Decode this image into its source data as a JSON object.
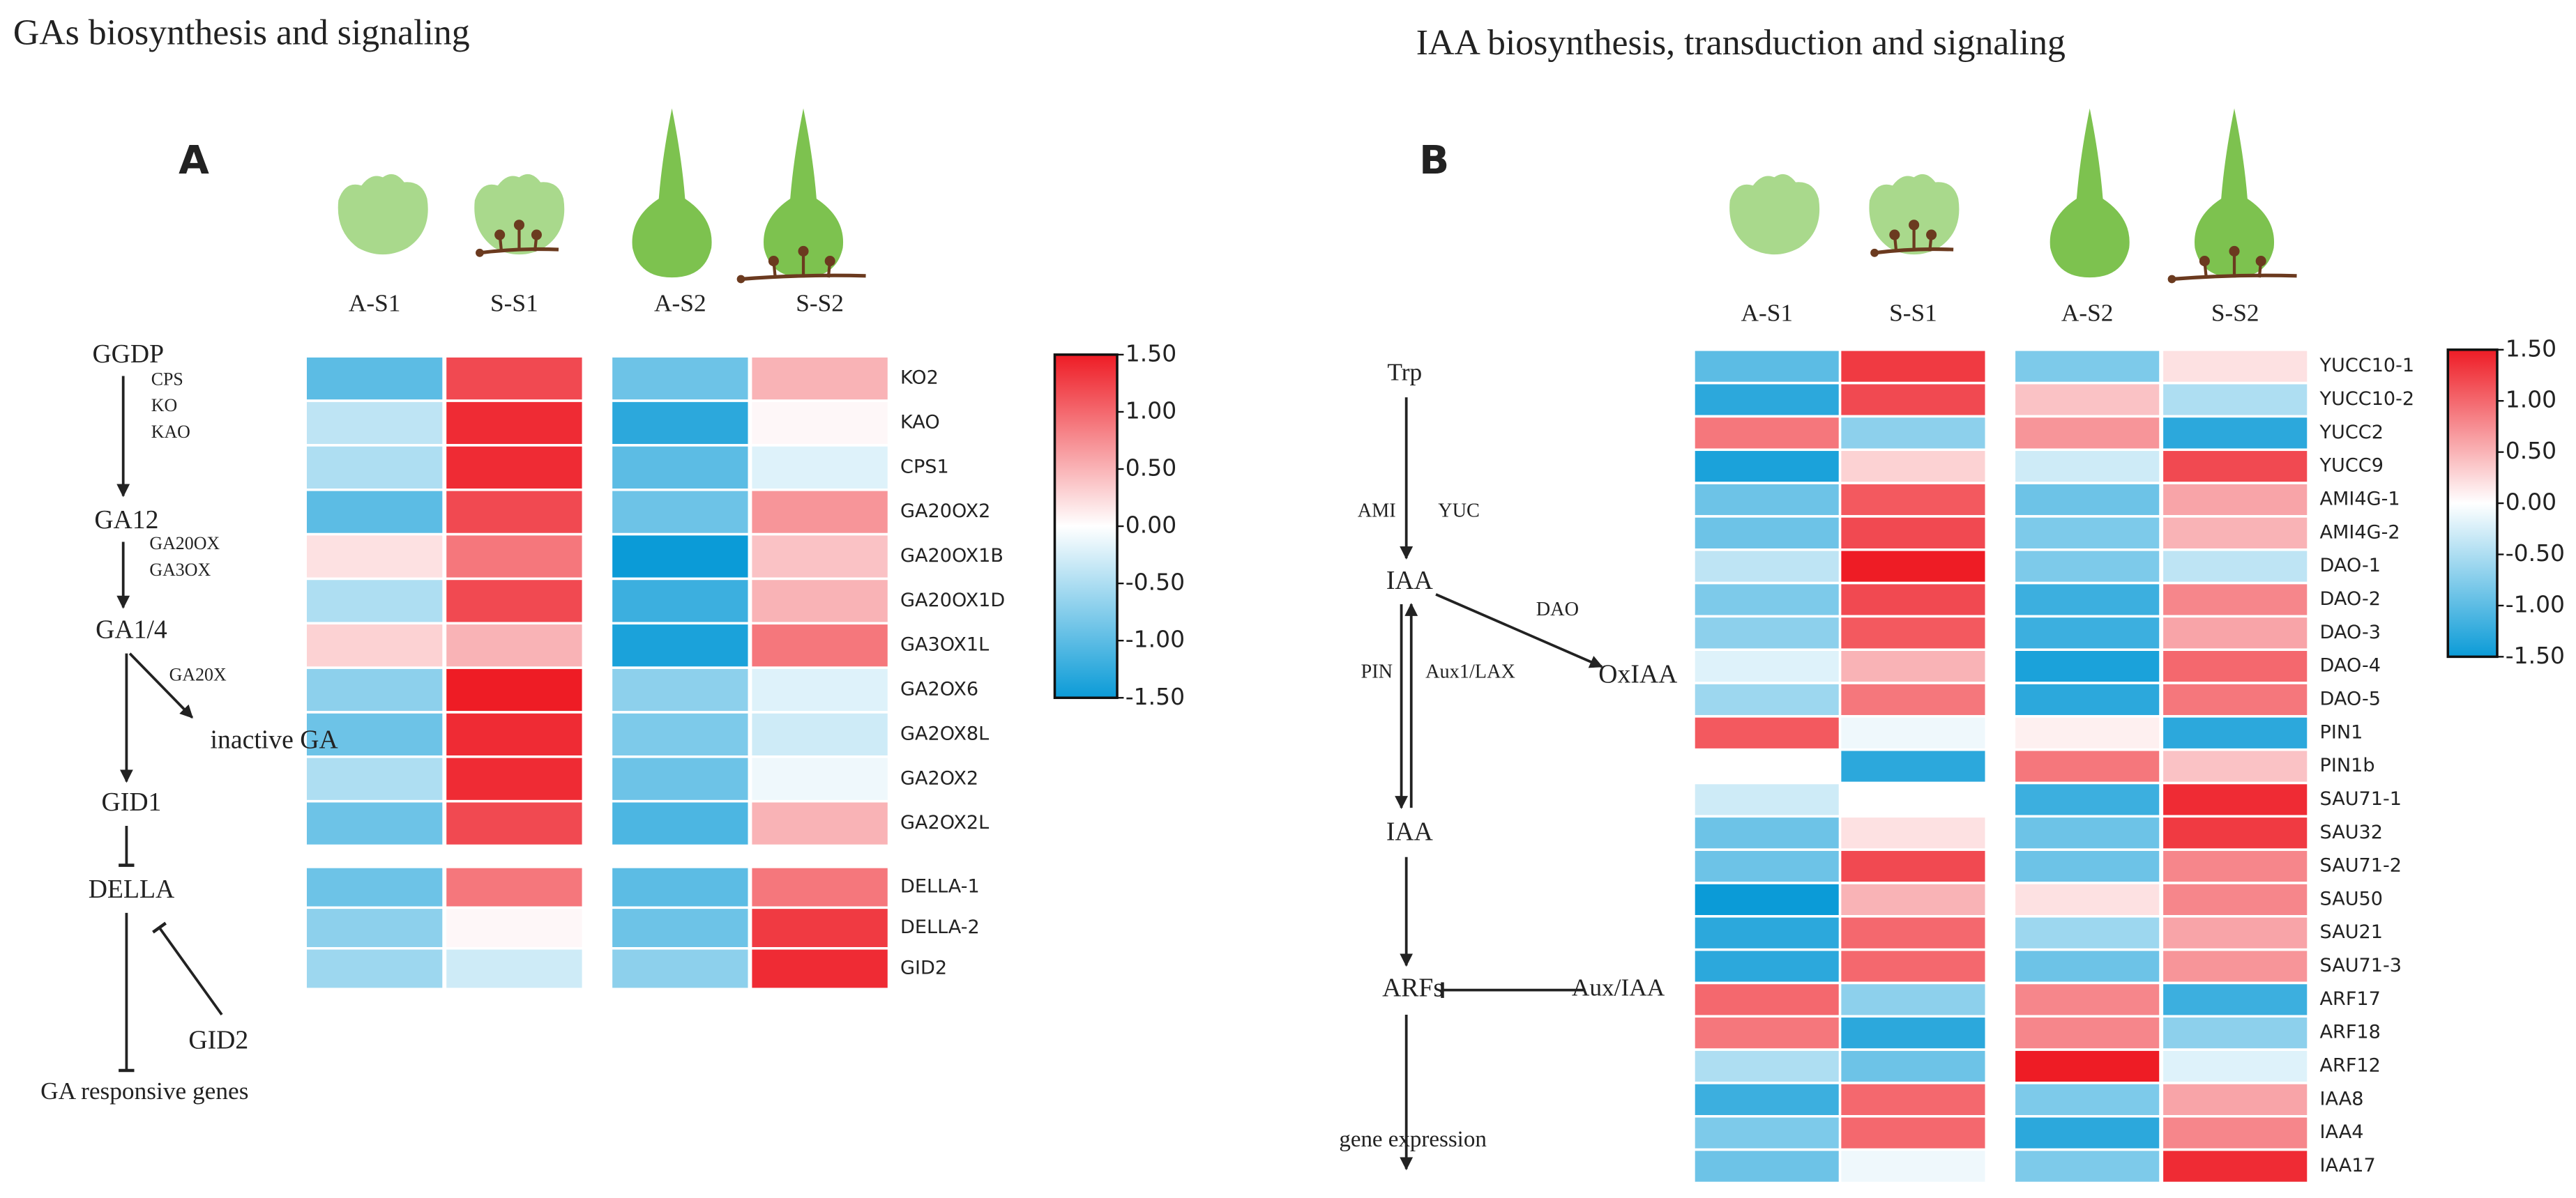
{
  "chart_data": [
    {
      "type": "heatmap",
      "title": "GAs biosynthesis and signaling",
      "panel_label": "A",
      "columns": [
        "A-S1",
        "S-S1",
        "A-S2",
        "S-S2"
      ],
      "rows": [
        "KO2",
        "KAO",
        "CPS1",
        "GA20OX2",
        "GA20OX1B",
        "GA20OX1D",
        "GA3OX1L",
        "GA2OX6",
        "GA2OX8L",
        "GA2OX2",
        "GA2OX2L",
        "DELLA-1",
        "DELLA-2",
        "GID2"
      ],
      "values": [
        [
          -1.0,
          1.2,
          -0.9,
          0.5
        ],
        [
          -0.4,
          1.4,
          -1.3,
          0.05
        ],
        [
          -0.5,
          1.4,
          -1.0,
          -0.2
        ],
        [
          -1.0,
          1.2,
          -0.9,
          0.7
        ],
        [
          0.2,
          0.9,
          -1.5,
          0.4
        ],
        [
          -0.5,
          1.2,
          -1.2,
          0.5
        ],
        [
          0.3,
          0.5,
          -1.4,
          0.9
        ],
        [
          -0.7,
          1.5,
          -0.7,
          -0.2
        ],
        [
          -0.9,
          1.4,
          -0.8,
          -0.3
        ],
        [
          -0.5,
          1.4,
          -0.9,
          -0.1
        ],
        [
          -0.9,
          1.2,
          -1.1,
          0.5
        ],
        [
          -0.9,
          0.9,
          -1.0,
          0.9
        ],
        [
          -0.7,
          0.05,
          -0.9,
          1.3
        ],
        [
          -0.6,
          -0.3,
          -0.7,
          1.4
        ]
      ],
      "colorscale": [
        "#0b9bd7",
        "#ffffff",
        "#ee1c25"
      ],
      "zlim": [
        -1.5,
        1.5
      ],
      "zticks": [
        {
          "value": 1.5,
          "label": "1.50"
        },
        {
          "value": 1,
          "label": "1.00"
        },
        {
          "value": 0.5,
          "label": "0.50"
        },
        {
          "value": 0,
          "label": "0.00"
        },
        {
          "value": -0.5,
          "label": "-0.50"
        },
        {
          "value": -1,
          "label": "-1.00"
        },
        {
          "value": -1.5,
          "label": "-1.50"
        }
      ],
      "pathway": [
        "GGDP",
        "CPS",
        "KO",
        "KAO",
        "GA12",
        "GA20OX",
        "GA3OX",
        "GA1/4",
        "GA20X",
        "inactive GA",
        "GID1",
        "DELLA",
        "GID2",
        "GA responsive genes"
      ]
    },
    {
      "type": "heatmap",
      "title": "IAA biosynthesis, transduction and signaling",
      "panel_label": "B",
      "columns": [
        "A-S1",
        "S-S1",
        "A-S2",
        "S-S2"
      ],
      "rows": [
        "YUCC10-1",
        "YUCC10-2",
        "YUCC2",
        "YUCC9",
        "AMI4G-1",
        "AMI4G-2",
        "DAO-1",
        "DAO-2",
        "DAO-3",
        "DAO-4",
        "DAO-5",
        "PIN1",
        "PIN1b",
        "SAU71-1",
        "SAU32",
        "SAU71-2",
        "SAU50",
        "SAU21",
        "SAU71-3",
        "ARF17",
        "ARF18",
        "ARF12",
        "IAA8",
        "IAA4",
        "IAA17"
      ],
      "values": [
        [
          -1.0,
          1.3,
          -0.8,
          0.2
        ],
        [
          -1.3,
          1.2,
          0.4,
          -0.5
        ],
        [
          0.9,
          -0.7,
          0.7,
          -1.3
        ],
        [
          -1.4,
          0.3,
          -0.3,
          1.2
        ],
        [
          -0.9,
          1.1,
          -0.9,
          0.6
        ],
        [
          -0.9,
          1.2,
          -0.8,
          0.5
        ],
        [
          -0.4,
          1.5,
          -0.8,
          -0.4
        ],
        [
          -0.8,
          1.2,
          -1.2,
          0.8
        ],
        [
          -0.7,
          1.1,
          -1.2,
          0.6
        ],
        [
          -0.2,
          0.5,
          -1.4,
          1.0
        ],
        [
          -0.6,
          0.9,
          -1.3,
          0.9
        ],
        [
          1.1,
          -0.1,
          0.1,
          -1.3
        ],
        [
          0.0,
          -1.3,
          0.9,
          0.4
        ],
        [
          -0.3,
          0.0,
          -1.2,
          1.4
        ],
        [
          -0.9,
          0.2,
          -0.9,
          1.3
        ],
        [
          -0.9,
          1.2,
          -0.9,
          0.8
        ],
        [
          -1.5,
          0.5,
          0.2,
          0.8
        ],
        [
          -1.3,
          1.0,
          -0.6,
          0.6
        ],
        [
          -1.3,
          1.0,
          -0.9,
          0.7
        ],
        [
          1.0,
          -0.7,
          0.8,
          -1.2
        ],
        [
          0.9,
          -1.3,
          0.8,
          -0.7
        ],
        [
          -0.5,
          -0.9,
          1.5,
          -0.2
        ],
        [
          -1.2,
          1.0,
          -0.8,
          0.6
        ],
        [
          -0.8,
          1.0,
          -1.3,
          0.8
        ],
        [
          -0.9,
          -0.1,
          -0.8,
          1.4
        ]
      ],
      "colorscale": [
        "#0b9bd7",
        "#ffffff",
        "#ee1c25"
      ],
      "zlim": [
        -1.5,
        1.5
      ],
      "zticks": [
        {
          "value": 1.5,
          "label": "1.50"
        },
        {
          "value": 1,
          "label": "1.00"
        },
        {
          "value": 0.5,
          "label": "0.50"
        },
        {
          "value": 0,
          "label": "0.00"
        },
        {
          "value": -0.5,
          "label": "-0.50"
        },
        {
          "value": -1,
          "label": "-1.00"
        },
        {
          "value": -1.5,
          "label": "-1.50"
        }
      ],
      "pathway": [
        "Trp",
        "AMI",
        "YUC",
        "IAA",
        "DAO",
        "OxIAA",
        "PIN",
        "Aux1/LAX",
        "IAA",
        "ARFs",
        "Aux/IAA",
        "gene expression"
      ]
    }
  ]
}
